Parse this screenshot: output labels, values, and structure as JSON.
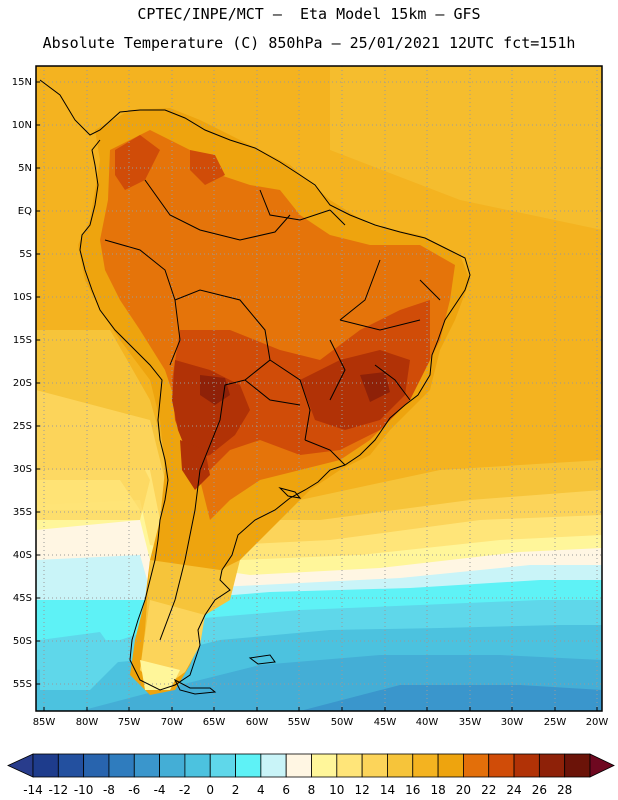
{
  "title_line1": "CPTEC/INPE/MCT –  Eta Model 15km – GFS",
  "title_line2": "Absolute Temperature (C) 850hPa – 25/01/2021 12UTC fct=151h",
  "lat_labels": [
    "15N",
    "10N",
    "5N",
    "EQ",
    "5S",
    "10S",
    "15S",
    "20S",
    "25S",
    "30S",
    "35S",
    "40S",
    "45S",
    "50S",
    "55S"
  ],
  "lon_labels": [
    "85W",
    "80W",
    "75W",
    "70W",
    "65W",
    "60W",
    "55W",
    "50W",
    "45W",
    "40W",
    "35W",
    "30W",
    "25W",
    "20W"
  ],
  "colorbar": {
    "labels": [
      "-14",
      "-12",
      "-10",
      "-8",
      "-6",
      "-4",
      "-2",
      "0",
      "2",
      "4",
      "6",
      "8",
      "10",
      "12",
      "14",
      "16",
      "18",
      "20",
      "22",
      "24",
      "26",
      "28"
    ],
    "colors": [
      "#1e3c8c",
      "#23509f",
      "#2864ae",
      "#2f7cbe",
      "#3a96cc",
      "#44aed6",
      "#4cc2df",
      "#5fd7ea",
      "#5ef2f6",
      "#c9f4f8",
      "#fff6e3",
      "#fff69a",
      "#ffe579",
      "#fcd45a",
      "#f6c43a",
      "#f4b320",
      "#eea40e",
      "#e36f0a",
      "#d04c08",
      "#b13206",
      "#8e2108",
      "#6b1308"
    ],
    "under_color": "#283c8c",
    "over_color": "#6e0820"
  }
}
